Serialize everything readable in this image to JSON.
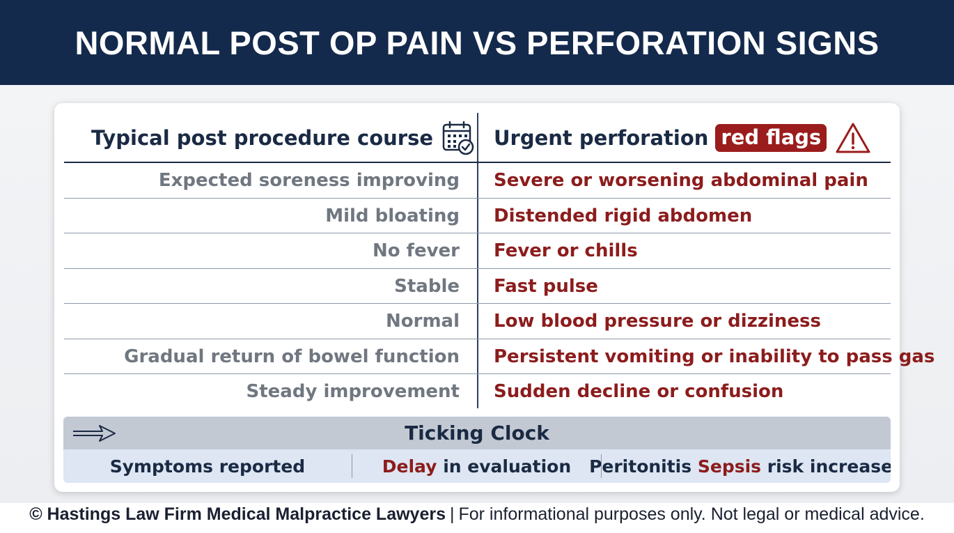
{
  "header": {
    "title": "NORMAL POST OP PAIN VS PERFORATION SIGNS"
  },
  "colors": {
    "navy": "#142a4c",
    "red_accent": "#9b1c1c",
    "muted_text": "#707780",
    "clock_top": "#c3c9d3",
    "clock_bottom": "#dde6f2"
  },
  "left_column": {
    "heading": "Typical post procedure course",
    "icon": "calendar-check-icon",
    "items": [
      "Expected soreness improving",
      "Mild bloating",
      "No fever",
      "Stable",
      "Normal",
      "Gradual return of bowel function",
      "Steady improvement"
    ]
  },
  "right_column": {
    "heading": "Urgent perforation",
    "badge": "red flags",
    "icon": "warning-triangle-icon",
    "items": [
      "Severe or worsening abdominal pain",
      "Distended rigid abdomen",
      "Fever or chills",
      "Fast pulse",
      "Low blood pressure or dizziness",
      "Persistent vomiting or inability to pass gas",
      "Sudden decline or confusion"
    ]
  },
  "ticking_clock": {
    "icon": "arrow-right-icon",
    "title": "Ticking Clock",
    "stage1": "Symptoms reported",
    "stage2_emphasis": "Delay",
    "stage2_rest": "in evaluation",
    "stage3_start": "Peritonitis",
    "stage3_emphasis": "Sepsis",
    "stage3_end": "risk increases"
  },
  "footer": {
    "firm": "© Hastings Law Firm Medical Malpractice Lawyers",
    "separator": "|",
    "disclaimer": "For informational purposes only. Not legal or medical advice."
  }
}
